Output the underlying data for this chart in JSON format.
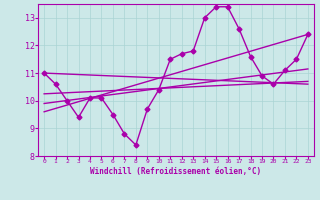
{
  "xlabel": "Windchill (Refroidissement éolien,°C)",
  "bg_color": "#cce8e8",
  "line_color": "#aa00aa",
  "ylim": [
    8,
    13.5
  ],
  "xlim": [
    -0.5,
    23.5
  ],
  "yticks": [
    8,
    9,
    10,
    11,
    12,
    13
  ],
  "xticks": [
    0,
    1,
    2,
    3,
    4,
    5,
    6,
    7,
    8,
    9,
    10,
    11,
    12,
    13,
    14,
    15,
    16,
    17,
    18,
    19,
    20,
    21,
    22,
    23
  ],
  "series1_x": [
    0,
    1,
    2,
    3,
    4,
    5,
    6,
    7,
    8,
    9,
    10,
    11,
    12,
    13,
    14,
    15,
    16,
    17,
    18,
    19,
    20,
    21,
    22,
    23
  ],
  "series1_y": [
    11.0,
    10.6,
    10.0,
    9.4,
    10.1,
    10.1,
    9.5,
    8.8,
    8.4,
    9.7,
    10.4,
    11.5,
    11.7,
    11.8,
    13.0,
    13.4,
    13.4,
    12.6,
    11.6,
    10.9,
    10.6,
    11.1,
    11.5,
    12.4
  ],
  "line2_x": [
    0,
    23
  ],
  "line2_y": [
    11.0,
    10.6
  ],
  "line3_x": [
    0,
    23
  ],
  "line3_y": [
    10.25,
    10.7
  ],
  "line4_x": [
    0,
    23
  ],
  "line4_y": [
    9.9,
    11.15
  ],
  "line5_x": [
    0,
    23
  ],
  "line5_y": [
    9.6,
    12.4
  ],
  "font_color": "#aa00aa",
  "grid_color": "#aad4d4",
  "marker": "D",
  "markersize": 2.5,
  "linewidth": 1.0
}
